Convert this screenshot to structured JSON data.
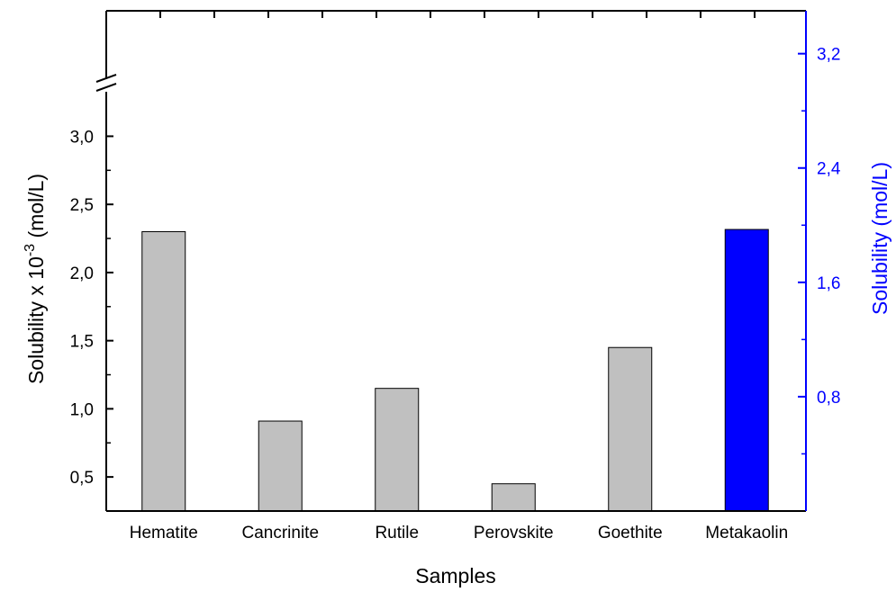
{
  "chart_data": {
    "type": "bar",
    "categories": [
      "Hematite",
      "Cancrinite",
      "Rutile",
      "Perovskite",
      "Goethite",
      "Metakaolin"
    ],
    "series": [
      {
        "axis": "left",
        "values": [
          2.3,
          0.91,
          1.15,
          0.45,
          1.45,
          null
        ],
        "color": "#c0c0c0"
      },
      {
        "axis": "right",
        "values": [
          null,
          null,
          null,
          null,
          null,
          1.97
        ],
        "color": "#0000ff"
      }
    ],
    "xlabel": "Samples",
    "ylabel_left": {
      "base": "Solubility x 10",
      "superscript": "-3",
      "unit": " (mol/L)"
    },
    "ylabel_right": "Solubility (mol/L)",
    "left_axis": {
      "ylim": [
        0.25,
        3.3
      ],
      "ticks": [
        0.5,
        1.0,
        1.5,
        2.0,
        2.5,
        3.0
      ],
      "tick_labels": [
        "0,5",
        "1,0",
        "1,5",
        "2,0",
        "2,5",
        "3,0"
      ],
      "axis_break": true
    },
    "right_axis": {
      "ylim": [
        0.0,
        3.5
      ],
      "ticks": [
        0.8,
        1.6,
        2.4,
        3.2
      ],
      "tick_labels": [
        "0,8",
        "1,6",
        "2,4",
        "3,2"
      ],
      "minor_ticks": [
        0.4,
        1.2,
        2.0,
        2.8
      ],
      "color": "#0000ff"
    },
    "grid": false,
    "legend": "none"
  }
}
